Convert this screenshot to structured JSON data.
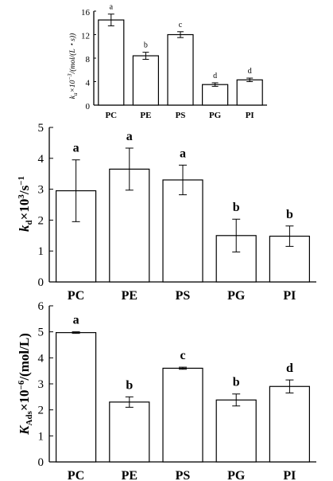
{
  "chart_data": [
    {
      "type": "bar",
      "categories": [
        "PC",
        "PE",
        "PS",
        "PG",
        "PI"
      ],
      "values": [
        14.5,
        8.4,
        12.0,
        3.5,
        4.3
      ],
      "errors": [
        1.0,
        0.6,
        0.5,
        0.3,
        0.3
      ],
      "labels": [
        "a",
        "b",
        "c",
        "d",
        "d"
      ],
      "ylabel": "kₐ×10⁻³/(mol/(L·s))",
      "ylim": [
        0,
        16
      ],
      "yticks": [
        "0",
        "4",
        "8",
        "12",
        "16"
      ]
    },
    {
      "type": "bar",
      "categories": [
        "PC",
        "PE",
        "PS",
        "PG",
        "PI"
      ],
      "values": [
        2.95,
        3.65,
        3.3,
        1.5,
        1.48
      ],
      "errors": [
        1.0,
        0.68,
        0.48,
        0.53,
        0.33
      ],
      "labels": [
        "a",
        "a",
        "a",
        "b",
        "b"
      ],
      "ylabel": "k_d×10³/s⁻¹",
      "ylim": [
        0,
        5
      ],
      "yticks": [
        "0",
        "1",
        "2",
        "3",
        "4",
        "5"
      ]
    },
    {
      "type": "bar",
      "categories": [
        "PC",
        "PE",
        "PS",
        "PG",
        "PI"
      ],
      "values": [
        4.97,
        2.3,
        3.6,
        2.38,
        2.9
      ],
      "errors": [
        0.03,
        0.2,
        0.04,
        0.23,
        0.25
      ],
      "labels": [
        "a",
        "b",
        "c",
        "b",
        "d"
      ],
      "ylabel": "K_Ads×10⁻⁶/(mol/L)",
      "ylim": [
        0,
        6
      ],
      "yticks": [
        "0",
        "1",
        "2",
        "3",
        "4",
        "5",
        "6"
      ]
    }
  ]
}
